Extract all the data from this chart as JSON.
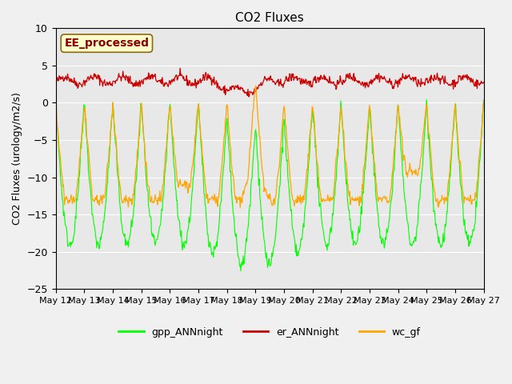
{
  "title": "CO2 Fluxes",
  "ylabel": "CO2 Fluxes (urology/m2/s)",
  "ylim": [
    -25,
    10
  ],
  "yticks": [
    -25,
    -20,
    -15,
    -10,
    -5,
    0,
    5,
    10
  ],
  "annotation": "EE_processed",
  "legend_labels": [
    "gpp_ANNnight",
    "er_ANNnight",
    "wc_gf"
  ],
  "line_colors": [
    "#00FF00",
    "#CC0000",
    "#FFA500"
  ],
  "background_color": "#f0f0f0",
  "plot_bg_color": "#e8e8e8",
  "n_days": 15,
  "points_per_day": 48,
  "xtick_labels": [
    "May 12",
    "May 13",
    "May 14",
    "May 15",
    "May 16",
    "May 17",
    "May 18",
    "May 19",
    "May 20",
    "May 21",
    "May 22",
    "May 23",
    "May 24",
    "May 25",
    "May 26",
    "May 27"
  ]
}
